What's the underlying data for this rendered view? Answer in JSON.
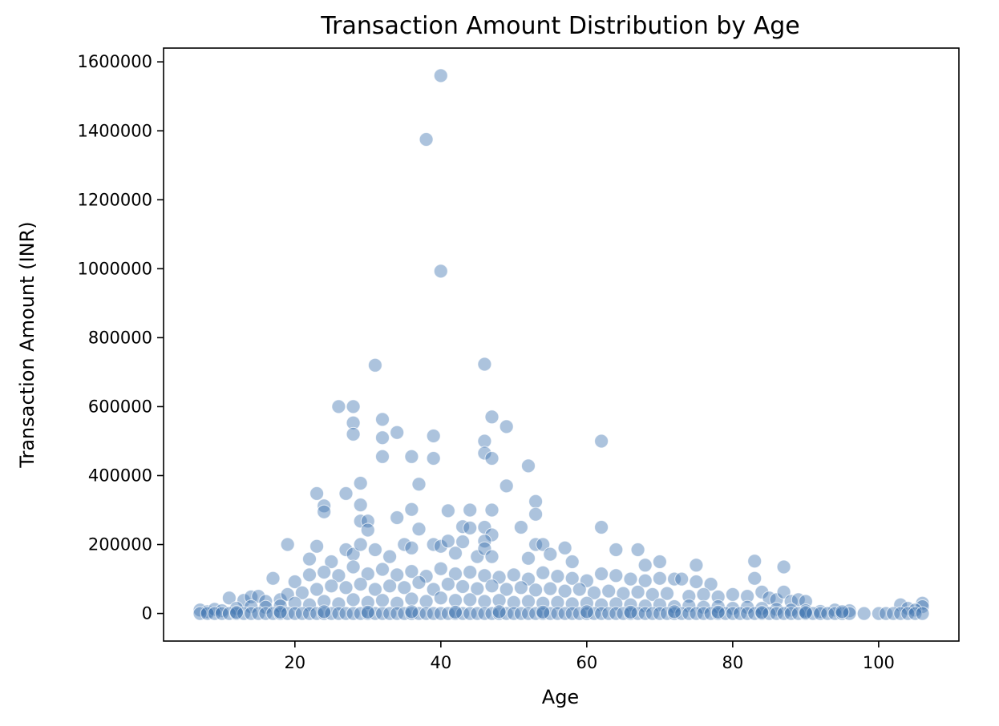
{
  "chart_data": {
    "type": "scatter",
    "title": "Transaction Amount Distribution by Age",
    "xlabel": "Age",
    "ylabel": "Transaction Amount (INR)",
    "xlim": [
      2,
      111
    ],
    "ylim": [
      -80000,
      1640000
    ],
    "x_ticks": [
      20,
      40,
      60,
      80,
      100
    ],
    "y_ticks": [
      0,
      200000,
      400000,
      600000,
      800000,
      1000000,
      1200000,
      1400000,
      1600000
    ],
    "grid": false,
    "legend": "none",
    "point_color": "#3a6faf",
    "point_opacity": 0.42,
    "series": [
      {
        "points": [
          [
            40,
            1560000
          ],
          [
            38,
            1375000
          ],
          [
            40,
            993000
          ],
          [
            31,
            720000
          ],
          [
            46,
            723000
          ],
          [
            26,
            600000
          ],
          [
            28,
            600000
          ],
          [
            28,
            553000
          ],
          [
            28,
            520000
          ],
          [
            32,
            563000
          ],
          [
            32,
            510000
          ],
          [
            32,
            455000
          ],
          [
            34,
            525000
          ],
          [
            36,
            455000
          ],
          [
            39,
            515000
          ],
          [
            39,
            450000
          ],
          [
            46,
            500000
          ],
          [
            46,
            465000
          ],
          [
            47,
            570000
          ],
          [
            47,
            450000
          ],
          [
            49,
            542000
          ],
          [
            49,
            370000
          ],
          [
            52,
            428000
          ],
          [
            62,
            500000
          ],
          [
            29,
            378000
          ],
          [
            29,
            315000
          ],
          [
            29,
            268000
          ],
          [
            30,
            268000
          ],
          [
            30,
            242000
          ],
          [
            23,
            348000
          ],
          [
            24,
            312000
          ],
          [
            24,
            295000
          ],
          [
            27,
            348000
          ],
          [
            34,
            278000
          ],
          [
            36,
            302000
          ],
          [
            37,
            375000
          ],
          [
            37,
            245000
          ],
          [
            41,
            298000
          ],
          [
            43,
            252000
          ],
          [
            44,
            300000
          ],
          [
            44,
            248000
          ],
          [
            43,
            208000
          ],
          [
            46,
            250000
          ],
          [
            47,
            300000
          ],
          [
            47,
            228000
          ],
          [
            51,
            250000
          ],
          [
            53,
            325000
          ],
          [
            53,
            288000
          ],
          [
            53,
            200000
          ],
          [
            62,
            250000
          ],
          [
            19,
            200000
          ],
          [
            23,
            195000
          ],
          [
            22,
            158000
          ],
          [
            25,
            150000
          ],
          [
            27,
            185000
          ],
          [
            28,
            172000
          ],
          [
            29,
            200000
          ],
          [
            31,
            185000
          ],
          [
            33,
            165000
          ],
          [
            35,
            200000
          ],
          [
            36,
            190000
          ],
          [
            39,
            200000
          ],
          [
            40,
            195000
          ],
          [
            41,
            210000
          ],
          [
            42,
            175000
          ],
          [
            45,
            165000
          ],
          [
            46,
            210000
          ],
          [
            46,
            188000
          ],
          [
            47,
            165000
          ],
          [
            52,
            160000
          ],
          [
            54,
            200000
          ],
          [
            55,
            172000
          ],
          [
            57,
            190000
          ],
          [
            58,
            150000
          ],
          [
            64,
            185000
          ],
          [
            67,
            185000
          ],
          [
            68,
            140000
          ],
          [
            70,
            150000
          ],
          [
            75,
            140000
          ],
          [
            83,
            152000
          ],
          [
            83,
            102000
          ],
          [
            87,
            135000
          ],
          [
            17,
            102000
          ],
          [
            20,
            92000
          ],
          [
            22,
            112000
          ],
          [
            24,
            120000
          ],
          [
            26,
            110000
          ],
          [
            28,
            135000
          ],
          [
            30,
            115000
          ],
          [
            32,
            128000
          ],
          [
            34,
            112000
          ],
          [
            36,
            122000
          ],
          [
            38,
            108000
          ],
          [
            40,
            130000
          ],
          [
            42,
            115000
          ],
          [
            44,
            120000
          ],
          [
            46,
            110000
          ],
          [
            48,
            105000
          ],
          [
            50,
            112000
          ],
          [
            52,
            100000
          ],
          [
            54,
            118000
          ],
          [
            56,
            108000
          ],
          [
            58,
            102000
          ],
          [
            60,
            95000
          ],
          [
            62,
            115000
          ],
          [
            64,
            110000
          ],
          [
            66,
            100000
          ],
          [
            68,
            95000
          ],
          [
            70,
            102000
          ],
          [
            72,
            100000
          ],
          [
            73,
            100000
          ],
          [
            75,
            92000
          ],
          [
            77,
            85000
          ],
          [
            11,
            45000
          ],
          [
            13,
            38000
          ],
          [
            14,
            48000
          ],
          [
            15,
            50000
          ],
          [
            16,
            35000
          ],
          [
            18,
            40000
          ],
          [
            19,
            55000
          ],
          [
            21,
            60000
          ],
          [
            23,
            70000
          ],
          [
            25,
            80000
          ],
          [
            27,
            75000
          ],
          [
            29,
            85000
          ],
          [
            31,
            70000
          ],
          [
            33,
            80000
          ],
          [
            35,
            75000
          ],
          [
            37,
            90000
          ],
          [
            39,
            70000
          ],
          [
            41,
            85000
          ],
          [
            43,
            78000
          ],
          [
            45,
            72000
          ],
          [
            47,
            80000
          ],
          [
            49,
            70000
          ],
          [
            51,
            75000
          ],
          [
            53,
            68000
          ],
          [
            55,
            72000
          ],
          [
            57,
            65000
          ],
          [
            59,
            70000
          ],
          [
            61,
            60000
          ],
          [
            63,
            65000
          ],
          [
            65,
            58000
          ],
          [
            67,
            62000
          ],
          [
            69,
            55000
          ],
          [
            71,
            58000
          ],
          [
            74,
            50000
          ],
          [
            76,
            55000
          ],
          [
            78,
            48000
          ],
          [
            80,
            55000
          ],
          [
            82,
            50000
          ],
          [
            84,
            62000
          ],
          [
            85,
            45000
          ],
          [
            86,
            40000
          ],
          [
            87,
            62000
          ],
          [
            88,
            35000
          ],
          [
            89,
            40000
          ],
          [
            90,
            35000
          ],
          [
            20,
            30000
          ],
          [
            22,
            25000
          ],
          [
            24,
            35000
          ],
          [
            26,
            28000
          ],
          [
            28,
            40000
          ],
          [
            30,
            32000
          ],
          [
            32,
            38000
          ],
          [
            34,
            30000
          ],
          [
            36,
            42000
          ],
          [
            38,
            35000
          ],
          [
            40,
            45000
          ],
          [
            42,
            38000
          ],
          [
            44,
            40000
          ],
          [
            46,
            35000
          ],
          [
            48,
            38000
          ],
          [
            50,
            32000
          ],
          [
            52,
            35000
          ],
          [
            54,
            30000
          ],
          [
            56,
            32000
          ],
          [
            58,
            28000
          ],
          [
            60,
            30000
          ],
          [
            62,
            25000
          ],
          [
            64,
            28000
          ],
          [
            66,
            25000
          ],
          [
            68,
            22000
          ],
          [
            70,
            25000
          ],
          [
            72,
            20000
          ],
          [
            74,
            22000
          ],
          [
            76,
            18000
          ],
          [
            78,
            20000
          ],
          [
            80,
            15000
          ],
          [
            82,
            18000
          ],
          [
            84,
            15000
          ],
          [
            86,
            12000
          ],
          [
            88,
            10000
          ],
          [
            90,
            8000
          ],
          [
            92,
            6000
          ],
          [
            94,
            10000
          ],
          [
            96,
            8000
          ],
          [
            103,
            25000
          ],
          [
            104,
            15000
          ],
          [
            106,
            30000
          ],
          [
            106,
            20000
          ],
          [
            105,
            10000
          ],
          [
            7,
            10000
          ],
          [
            8,
            5000
          ],
          [
            9,
            12000
          ],
          [
            10,
            8000
          ],
          [
            12,
            15000
          ],
          [
            14,
            20000
          ],
          [
            16,
            18000
          ],
          [
            18,
            22000
          ],
          [
            7,
            0
          ],
          [
            8,
            0
          ],
          [
            9,
            0
          ],
          [
            10,
            0
          ],
          [
            11,
            0
          ],
          [
            12,
            0
          ],
          [
            13,
            0
          ],
          [
            14,
            0
          ],
          [
            15,
            0
          ],
          [
            16,
            0
          ],
          [
            17,
            0
          ],
          [
            18,
            0
          ],
          [
            19,
            0
          ],
          [
            20,
            0
          ],
          [
            21,
            0
          ],
          [
            22,
            0
          ],
          [
            23,
            0
          ],
          [
            24,
            0
          ],
          [
            25,
            0
          ],
          [
            26,
            0
          ],
          [
            27,
            0
          ],
          [
            28,
            0
          ],
          [
            29,
            0
          ],
          [
            30,
            0
          ],
          [
            31,
            0
          ],
          [
            32,
            0
          ],
          [
            33,
            0
          ],
          [
            34,
            0
          ],
          [
            35,
            0
          ],
          [
            36,
            0
          ],
          [
            37,
            0
          ],
          [
            38,
            0
          ],
          [
            39,
            0
          ],
          [
            40,
            0
          ],
          [
            41,
            0
          ],
          [
            42,
            0
          ],
          [
            43,
            0
          ],
          [
            44,
            0
          ],
          [
            45,
            0
          ],
          [
            46,
            0
          ],
          [
            47,
            0
          ],
          [
            48,
            0
          ],
          [
            49,
            0
          ],
          [
            50,
            0
          ],
          [
            51,
            0
          ],
          [
            52,
            0
          ],
          [
            53,
            0
          ],
          [
            54,
            0
          ],
          [
            55,
            0
          ],
          [
            56,
            0
          ],
          [
            57,
            0
          ],
          [
            58,
            0
          ],
          [
            59,
            0
          ],
          [
            60,
            0
          ],
          [
            61,
            0
          ],
          [
            62,
            0
          ],
          [
            63,
            0
          ],
          [
            64,
            0
          ],
          [
            65,
            0
          ],
          [
            66,
            0
          ],
          [
            67,
            0
          ],
          [
            68,
            0
          ],
          [
            69,
            0
          ],
          [
            70,
            0
          ],
          [
            71,
            0
          ],
          [
            72,
            0
          ],
          [
            73,
            0
          ],
          [
            74,
            0
          ],
          [
            75,
            0
          ],
          [
            76,
            0
          ],
          [
            77,
            0
          ],
          [
            78,
            0
          ],
          [
            79,
            0
          ],
          [
            80,
            0
          ],
          [
            81,
            0
          ],
          [
            82,
            0
          ],
          [
            83,
            0
          ],
          [
            84,
            0
          ],
          [
            85,
            0
          ],
          [
            86,
            0
          ],
          [
            87,
            0
          ],
          [
            88,
            0
          ],
          [
            89,
            0
          ],
          [
            90,
            0
          ],
          [
            91,
            0
          ],
          [
            92,
            0
          ],
          [
            93,
            0
          ],
          [
            94,
            0
          ],
          [
            95,
            0
          ],
          [
            96,
            0
          ],
          [
            98,
            0
          ],
          [
            100,
            0
          ],
          [
            101,
            0
          ],
          [
            102,
            0
          ],
          [
            103,
            0
          ],
          [
            104,
            0
          ],
          [
            105,
            0
          ],
          [
            106,
            0
          ],
          [
            12,
            3000
          ],
          [
            18,
            4000
          ],
          [
            24,
            5000
          ],
          [
            30,
            4000
          ],
          [
            36,
            5000
          ],
          [
            42,
            4000
          ],
          [
            48,
            5000
          ],
          [
            54,
            4000
          ],
          [
            60,
            5000
          ],
          [
            66,
            4000
          ],
          [
            72,
            5000
          ],
          [
            78,
            4000
          ],
          [
            84,
            3000
          ],
          [
            90,
            3000
          ],
          [
            95,
            5000
          ]
        ]
      }
    ]
  }
}
